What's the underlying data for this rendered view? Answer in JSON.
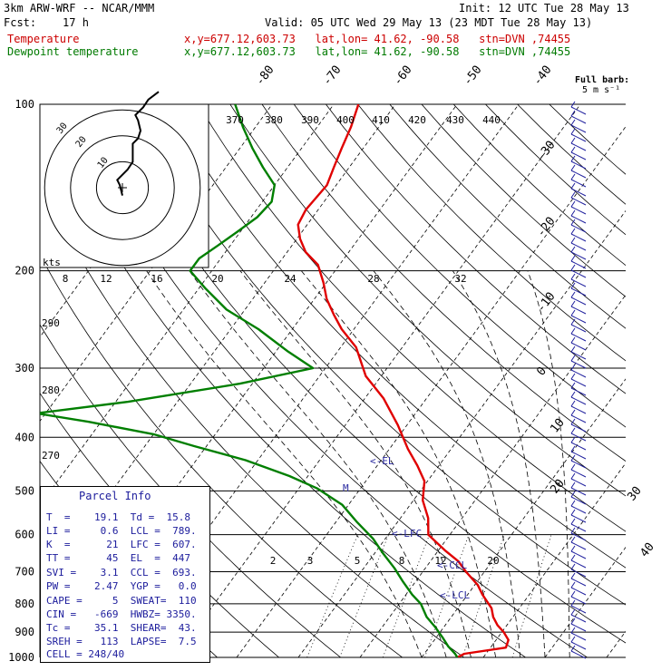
{
  "header": {
    "model": "3km ARW-WRF -- NCAR/MMM",
    "init": "Init: 12 UTC Tue 28 May 13",
    "fcst": "Fcst:    17 h",
    "valid": "Valid: 05 UTC Wed 29 May 13 (23 MDT Tue 28 May 13)",
    "temp_label": "Temperature",
    "temp_info": "x,y=677.12,603.73   lat,lon= 41.62, -90.58   stn=DVN ,74455",
    "dew_label": "Dewpoint temperature",
    "dew_info": "x,y=677.12,603.73   lat,lon= 41.62, -90.58   stn=DVN ,74455",
    "barb_note_1": "Full barb:",
    "barb_note_2": "5 m s⁻¹"
  },
  "parcel_info": {
    "title": "Parcel Info",
    "rows": [
      "T  =    19.1  Td =  15.8",
      "LI =     0.6  LCL =  789.",
      "K  =      21  LFC =  607.",
      "TT =      45  EL  =  447",
      "SVI =    3.1  CCL =  693.",
      "PW =    2.47  YGP =   0.0",
      "CAPE =     5  SWEAT=  110",
      "CIN =   -669  HWBZ= 3350.",
      "Tc =    35.1  SHEAR=  43.",
      "SREH =   113  LAPSE=  7.5",
      "CELL = 248/40"
    ]
  },
  "hodograph": {
    "units_label": "kts",
    "ring_labels": [
      "30",
      "20",
      "10"
    ],
    "polyline_uv": [
      [
        0,
        -3
      ],
      [
        -1,
        1
      ],
      [
        -2,
        3
      ],
      [
        2,
        7
      ],
      [
        4,
        10
      ],
      [
        4,
        14
      ],
      [
        4,
        17
      ],
      [
        6,
        19
      ],
      [
        7,
        22
      ],
      [
        6,
        26
      ],
      [
        5,
        28
      ],
      [
        8,
        31
      ],
      [
        10,
        34
      ],
      [
        14,
        37
      ]
    ]
  },
  "chart_data": {
    "type": "line",
    "title": "",
    "y_axis": {
      "label": "",
      "scale": "log",
      "ylim": [
        1000,
        100
      ],
      "ticks": [
        100,
        200,
        300,
        400,
        500,
        600,
        700,
        800,
        900,
        1000
      ]
    },
    "isotherm_labels": [
      -80,
      -70,
      -60,
      -50,
      -40,
      -30,
      -20,
      -10,
      0,
      10,
      20,
      30,
      40
    ],
    "bottom_temperature_labels": [
      "8",
      "12",
      "16",
      "20",
      "24",
      "28",
      "32"
    ],
    "theta_labels_top": [
      "370",
      "380",
      "390",
      "400",
      "410",
      "420",
      "430",
      "440"
    ],
    "theta_labels_left": [
      "290",
      "280",
      "270"
    ],
    "mixing_ratio_labels": [
      "2",
      "3",
      "5",
      "8",
      "12",
      "20"
    ],
    "level_markers": [
      "<-EL",
      "M",
      "<-LFC",
      "<-CCL",
      "<-LCL"
    ],
    "series": [
      {
        "name": "Temperature",
        "color": "#e00000",
        "points": [
          [
            15.8,
            1000
          ],
          [
            16.5,
            985
          ],
          [
            22.5,
            960
          ],
          [
            22.0,
            930
          ],
          [
            20.3,
            900
          ],
          [
            18.5,
            875
          ],
          [
            16.8,
            845
          ],
          [
            15.5,
            815
          ],
          [
            12.4,
            770
          ],
          [
            10.5,
            740
          ],
          [
            7.0,
            700
          ],
          [
            4.5,
            670
          ],
          [
            1.0,
            640
          ],
          [
            -3.5,
            600
          ],
          [
            -5.5,
            560
          ],
          [
            -8.5,
            520
          ],
          [
            -10.5,
            480
          ],
          [
            -13.5,
            450
          ],
          [
            -17.0,
            420
          ],
          [
            -21.5,
            380
          ],
          [
            -27.0,
            340
          ],
          [
            -32.5,
            310
          ],
          [
            -37.5,
            275
          ],
          [
            -42.0,
            255
          ],
          [
            -45.0,
            240
          ],
          [
            -48.0,
            225
          ],
          [
            -50.5,
            210
          ],
          [
            -53.5,
            195
          ],
          [
            -57.0,
            185
          ],
          [
            -59.5,
            175
          ],
          [
            -61.5,
            165
          ],
          [
            -62.0,
            155
          ],
          [
            -61.5,
            140
          ],
          [
            -62.5,
            130
          ],
          [
            -63.5,
            120
          ],
          [
            -64.5,
            110
          ],
          [
            -66.0,
            100
          ]
        ]
      },
      {
        "name": "Dewpoint temperature",
        "color": "#007f00",
        "points": [
          [
            15.8,
            1000
          ],
          [
            15.0,
            985
          ],
          [
            13.0,
            955
          ],
          [
            11.0,
            920
          ],
          [
            8.5,
            880
          ],
          [
            6.0,
            845
          ],
          [
            3.5,
            800
          ],
          [
            1.0,
            770
          ],
          [
            -2.0,
            730
          ],
          [
            -5.0,
            690
          ],
          [
            -8.5,
            650
          ],
          [
            -12.0,
            610
          ],
          [
            -16.5,
            570
          ],
          [
            -21.0,
            530
          ],
          [
            -27.0,
            495
          ],
          [
            -33.0,
            470
          ],
          [
            -42.0,
            440
          ],
          [
            -52.0,
            415
          ],
          [
            -60.0,
            395
          ],
          [
            -72.0,
            375
          ],
          [
            -81.5,
            362
          ],
          [
            -68.0,
            345
          ],
          [
            -52.0,
            320
          ],
          [
            -42.0,
            300
          ],
          [
            -48.0,
            280
          ],
          [
            -55.5,
            255
          ],
          [
            -63.0,
            235
          ],
          [
            -69.0,
            215
          ],
          [
            -73.5,
            200
          ],
          [
            -73.5,
            190
          ],
          [
            -72.0,
            180
          ],
          [
            -70.5,
            170
          ],
          [
            -69.0,
            160
          ],
          [
            -68.5,
            150
          ],
          [
            -70.0,
            140
          ],
          [
            -74.0,
            130
          ],
          [
            -78.0,
            120
          ],
          [
            -82.0,
            110
          ],
          [
            -86.0,
            100
          ]
        ]
      }
    ]
  }
}
